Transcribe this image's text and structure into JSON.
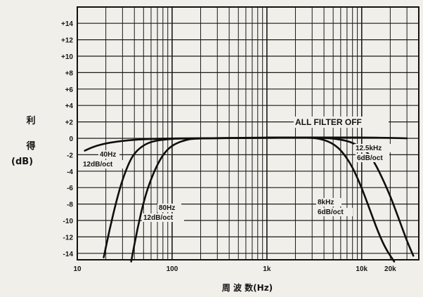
{
  "chart_data": {
    "type": "line",
    "title": "",
    "xscale": "log",
    "xlim": [
      10,
      40000
    ],
    "ylim": [
      -16,
      16
    ],
    "x_ticks": [
      {
        "value": 10,
        "label": "10"
      },
      {
        "value": 100,
        "label": "100"
      },
      {
        "value": 1000,
        "label": "1k"
      },
      {
        "value": 10000,
        "label": "10k"
      },
      {
        "value": 20000,
        "label": "20k"
      }
    ],
    "y_ticks": [
      {
        "value": 14,
        "label": "+14"
      },
      {
        "value": 12,
        "label": "+12"
      },
      {
        "value": 10,
        "label": "+10"
      },
      {
        "value": 8,
        "label": "+8"
      },
      {
        "value": 6,
        "label": "+6"
      },
      {
        "value": 4,
        "label": "+4"
      },
      {
        "value": 2,
        "label": "+2"
      },
      {
        "value": 0,
        "label": "0"
      },
      {
        "value": -2,
        "label": "-2"
      },
      {
        "value": -4,
        "label": "-4"
      },
      {
        "value": -6,
        "label": "-6"
      },
      {
        "value": -8,
        "label": "-8"
      },
      {
        "value": -10,
        "label": "-10"
      },
      {
        "value": -12,
        "label": "-12"
      },
      {
        "value": -14,
        "label": "-14"
      }
    ],
    "ylabel": [
      "利",
      "得",
      "(dB)"
    ],
    "xlabel": "周  波  数(Hz)",
    "grid": true,
    "series": [
      {
        "name": "ALL FILTER OFF",
        "x": [
          12,
          15,
          20,
          30,
          50,
          100,
          200,
          1000,
          5000,
          10000,
          20000,
          30000
        ],
        "y": [
          -1.5,
          -1.0,
          -0.6,
          -0.3,
          -0.1,
          0,
          0,
          0.1,
          0.1,
          0.1,
          0.05,
          0
        ]
      },
      {
        "name": "40Hz 12dB/oct",
        "x": [
          19,
          22,
          26,
          30,
          35,
          40,
          50,
          65,
          90,
          130,
          1000,
          3000
        ],
        "y": [
          -14.5,
          -11,
          -7.5,
          -5,
          -3,
          -1.8,
          -0.8,
          -0.3,
          -0.1,
          0,
          0.05,
          0.1
        ]
      },
      {
        "name": "80Hz 12dB/oct",
        "x": [
          37,
          43,
          52,
          62,
          75,
          90,
          110,
          140,
          170,
          1000,
          3000
        ],
        "y": [
          -15,
          -11,
          -7,
          -4.5,
          -2.5,
          -1.3,
          -0.6,
          -0.2,
          0,
          0.05,
          0.1
        ]
      },
      {
        "name": "12.5kHz 6dB/oct",
        "x": [
          1000,
          3000,
          5000,
          7000,
          9000,
          11000,
          13000,
          16000,
          20000,
          25000,
          30000,
          35000
        ],
        "y": [
          0.1,
          0.1,
          0,
          -0.3,
          -0.8,
          -1.5,
          -2.5,
          -4.5,
          -7,
          -10,
          -12.5,
          -14.3
        ]
      },
      {
        "name": "8kHz 6dB/oct",
        "x": [
          1000,
          2500,
          3500,
          4500,
          5500,
          6500,
          8000,
          10000,
          12000,
          15000,
          18000,
          22000
        ],
        "y": [
          0.1,
          0.1,
          0,
          -0.4,
          -1,
          -1.9,
          -3.5,
          -6,
          -8.5,
          -11.5,
          -13.5,
          -15
        ]
      }
    ],
    "annotations": [
      {
        "text": "ALL FILTER OFF",
        "series": 0
      },
      {
        "text": "40Hz",
        "series": 1
      },
      {
        "text": "12dB/oct",
        "series": 1
      },
      {
        "text": "80Hz",
        "series": 2
      },
      {
        "text": "12dB/oct",
        "series": 2
      },
      {
        "text": "12.5kHz",
        "series": 3
      },
      {
        "text": "6dB/oct",
        "series": 3
      },
      {
        "text": "8kHz",
        "series": 4
      },
      {
        "text": "6dB/oct",
        "series": 4
      }
    ]
  }
}
